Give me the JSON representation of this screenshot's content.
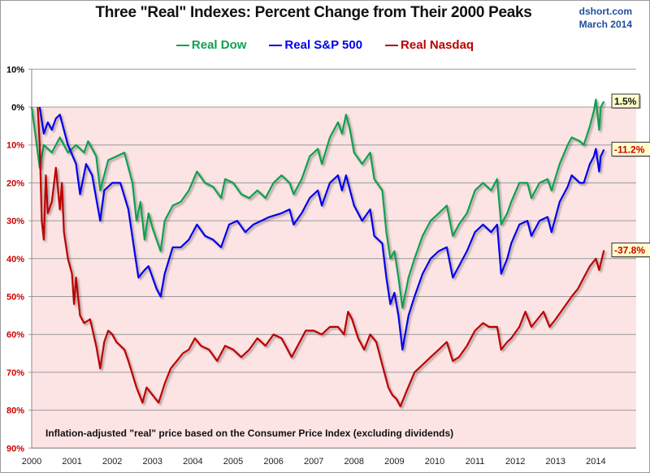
{
  "header": {
    "title": "Three \"Real\" Indexes: Percent Change from Their 2000 Peaks",
    "credit_site": "dshort.com",
    "credit_date": "March 2014"
  },
  "chart_data": {
    "type": "line",
    "title": "Three \"Real\" Indexes: Percent Change from Their 2000 Peaks",
    "xlabel": "",
    "ylabel": "",
    "annotation": "Inflation-adjusted \"real\" price based on the Consumer Price Index (excluding dividends)",
    "xlim": [
      2000,
      2015
    ],
    "ylim": [
      -90,
      10
    ],
    "grid": true,
    "legend_position": "top-center",
    "x_ticks": [
      "2000",
      "2001",
      "2002",
      "2003",
      "2004",
      "2005",
      "2006",
      "2007",
      "2008",
      "2009",
      "2010",
      "2011",
      "2012",
      "2013",
      "2014"
    ],
    "y_ticks": [
      {
        "value": 10,
        "label": "10%",
        "color": "#000000"
      },
      {
        "value": 0,
        "label": "0%",
        "color": "#000000"
      },
      {
        "value": -10,
        "label": "10%",
        "color": "#cc0000"
      },
      {
        "value": -20,
        "label": "20%",
        "color": "#cc0000"
      },
      {
        "value": -30,
        "label": "30%",
        "color": "#cc0000"
      },
      {
        "value": -40,
        "label": "40%",
        "color": "#cc0000"
      },
      {
        "value": -50,
        "label": "50%",
        "color": "#cc0000"
      },
      {
        "value": -60,
        "label": "60%",
        "color": "#cc0000"
      },
      {
        "value": -70,
        "label": "70%",
        "color": "#cc0000"
      },
      {
        "value": -80,
        "label": "80%",
        "color": "#cc0000"
      },
      {
        "value": -90,
        "label": "90%",
        "color": "#cc0000"
      }
    ],
    "series": [
      {
        "name": "Real Dow",
        "color": "#0fa050",
        "end_label": "1.5%",
        "end_label_color": "#111111",
        "end_value": 1.5,
        "points": [
          [
            2000.0,
            0
          ],
          [
            2000.1,
            -8
          ],
          [
            2000.2,
            -16
          ],
          [
            2000.3,
            -10
          ],
          [
            2000.5,
            -12
          ],
          [
            2000.7,
            -8
          ],
          [
            2000.9,
            -12
          ],
          [
            2001.1,
            -10
          ],
          [
            2001.3,
            -12
          ],
          [
            2001.4,
            -9
          ],
          [
            2001.6,
            -13
          ],
          [
            2001.7,
            -22
          ],
          [
            2001.9,
            -14
          ],
          [
            2002.1,
            -13
          ],
          [
            2002.3,
            -12
          ],
          [
            2002.5,
            -20
          ],
          [
            2002.6,
            -30
          ],
          [
            2002.7,
            -25
          ],
          [
            2002.8,
            -35
          ],
          [
            2002.9,
            -28
          ],
          [
            2003.0,
            -32
          ],
          [
            2003.2,
            -38
          ],
          [
            2003.3,
            -30
          ],
          [
            2003.5,
            -26
          ],
          [
            2003.7,
            -25
          ],
          [
            2003.9,
            -22
          ],
          [
            2004.1,
            -17
          ],
          [
            2004.3,
            -20
          ],
          [
            2004.5,
            -21
          ],
          [
            2004.7,
            -24
          ],
          [
            2004.8,
            -19
          ],
          [
            2005.0,
            -20
          ],
          [
            2005.2,
            -23
          ],
          [
            2005.4,
            -24
          ],
          [
            2005.6,
            -22
          ],
          [
            2005.8,
            -24
          ],
          [
            2006.0,
            -20
          ],
          [
            2006.2,
            -18
          ],
          [
            2006.4,
            -20
          ],
          [
            2006.5,
            -23
          ],
          [
            2006.7,
            -19
          ],
          [
            2006.9,
            -13
          ],
          [
            2007.1,
            -11
          ],
          [
            2007.2,
            -15
          ],
          [
            2007.4,
            -8
          ],
          [
            2007.6,
            -4
          ],
          [
            2007.7,
            -7
          ],
          [
            2007.8,
            -2
          ],
          [
            2007.9,
            -6
          ],
          [
            2008.0,
            -12
          ],
          [
            2008.2,
            -15
          ],
          [
            2008.4,
            -12
          ],
          [
            2008.5,
            -19
          ],
          [
            2008.7,
            -22
          ],
          [
            2008.8,
            -33
          ],
          [
            2008.9,
            -40
          ],
          [
            2009.0,
            -38
          ],
          [
            2009.1,
            -45
          ],
          [
            2009.2,
            -53
          ],
          [
            2009.35,
            -45
          ],
          [
            2009.5,
            -40
          ],
          [
            2009.7,
            -34
          ],
          [
            2009.9,
            -30
          ],
          [
            2010.1,
            -28
          ],
          [
            2010.3,
            -26
          ],
          [
            2010.45,
            -34
          ],
          [
            2010.6,
            -31
          ],
          [
            2010.8,
            -28
          ],
          [
            2011.0,
            -22
          ],
          [
            2011.2,
            -20
          ],
          [
            2011.4,
            -22
          ],
          [
            2011.55,
            -19
          ],
          [
            2011.65,
            -31
          ],
          [
            2011.8,
            -28
          ],
          [
            2011.9,
            -25
          ],
          [
            2012.1,
            -20
          ],
          [
            2012.3,
            -20
          ],
          [
            2012.4,
            -24
          ],
          [
            2012.6,
            -20
          ],
          [
            2012.8,
            -19
          ],
          [
            2012.9,
            -22
          ],
          [
            2013.1,
            -15
          ],
          [
            2013.3,
            -10
          ],
          [
            2013.4,
            -8
          ],
          [
            2013.6,
            -9
          ],
          [
            2013.7,
            -10
          ],
          [
            2013.85,
            -5
          ],
          [
            2013.95,
            -1
          ],
          [
            2014.0,
            2
          ],
          [
            2014.08,
            -6
          ],
          [
            2014.12,
            0
          ],
          [
            2014.2,
            1.5
          ]
        ]
      },
      {
        "name": "Real S&P 500",
        "color": "#0000ee",
        "end_label": "-11.2%",
        "end_label_color": "#cc0000",
        "end_value": -11.2,
        "points": [
          [
            2000.2,
            0
          ],
          [
            2000.3,
            -7
          ],
          [
            2000.4,
            -4
          ],
          [
            2000.5,
            -6
          ],
          [
            2000.6,
            -3
          ],
          [
            2000.7,
            -2
          ],
          [
            2000.9,
            -10
          ],
          [
            2001.1,
            -15
          ],
          [
            2001.2,
            -23
          ],
          [
            2001.35,
            -15
          ],
          [
            2001.5,
            -18
          ],
          [
            2001.7,
            -30
          ],
          [
            2001.8,
            -22
          ],
          [
            2002.0,
            -20
          ],
          [
            2002.2,
            -20
          ],
          [
            2002.4,
            -27
          ],
          [
            2002.55,
            -38
          ],
          [
            2002.65,
            -45
          ],
          [
            2002.8,
            -43
          ],
          [
            2002.9,
            -42
          ],
          [
            2003.1,
            -48
          ],
          [
            2003.2,
            -50
          ],
          [
            2003.3,
            -44
          ],
          [
            2003.5,
            -37
          ],
          [
            2003.7,
            -37
          ],
          [
            2003.9,
            -35
          ],
          [
            2004.1,
            -31
          ],
          [
            2004.3,
            -34
          ],
          [
            2004.5,
            -35
          ],
          [
            2004.7,
            -37
          ],
          [
            2004.9,
            -31
          ],
          [
            2005.1,
            -30
          ],
          [
            2005.3,
            -33
          ],
          [
            2005.5,
            -31
          ],
          [
            2005.7,
            -30
          ],
          [
            2005.9,
            -29
          ],
          [
            2006.2,
            -28
          ],
          [
            2006.4,
            -27
          ],
          [
            2006.5,
            -31
          ],
          [
            2006.7,
            -28
          ],
          [
            2006.9,
            -24
          ],
          [
            2007.1,
            -22
          ],
          [
            2007.2,
            -26
          ],
          [
            2007.4,
            -20
          ],
          [
            2007.6,
            -18
          ],
          [
            2007.7,
            -22
          ],
          [
            2007.8,
            -18
          ],
          [
            2008.0,
            -26
          ],
          [
            2008.2,
            -30
          ],
          [
            2008.4,
            -27
          ],
          [
            2008.5,
            -34
          ],
          [
            2008.7,
            -36
          ],
          [
            2008.8,
            -45
          ],
          [
            2008.9,
            -52
          ],
          [
            2009.0,
            -49
          ],
          [
            2009.1,
            -55
          ],
          [
            2009.2,
            -64
          ],
          [
            2009.35,
            -55
          ],
          [
            2009.5,
            -50
          ],
          [
            2009.7,
            -44
          ],
          [
            2009.9,
            -40
          ],
          [
            2010.1,
            -38
          ],
          [
            2010.3,
            -37
          ],
          [
            2010.45,
            -45
          ],
          [
            2010.6,
            -42
          ],
          [
            2010.8,
            -38
          ],
          [
            2011.0,
            -33
          ],
          [
            2011.2,
            -31
          ],
          [
            2011.4,
            -33
          ],
          [
            2011.55,
            -31
          ],
          [
            2011.65,
            -44
          ],
          [
            2011.8,
            -40
          ],
          [
            2011.9,
            -36
          ],
          [
            2012.1,
            -31
          ],
          [
            2012.3,
            -30
          ],
          [
            2012.4,
            -34
          ],
          [
            2012.6,
            -30
          ],
          [
            2012.8,
            -29
          ],
          [
            2012.9,
            -33
          ],
          [
            2013.1,
            -25
          ],
          [
            2013.3,
            -21
          ],
          [
            2013.4,
            -18
          ],
          [
            2013.6,
            -20
          ],
          [
            2013.7,
            -20
          ],
          [
            2013.85,
            -15
          ],
          [
            2013.95,
            -13
          ],
          [
            2014.0,
            -11
          ],
          [
            2014.08,
            -17
          ],
          [
            2014.12,
            -13
          ],
          [
            2014.2,
            -11.2
          ]
        ]
      },
      {
        "name": "Real Nasdaq",
        "color": "#bb0000",
        "end_label": "-37.8%",
        "end_label_color": "#cc0000",
        "end_value": -37.8,
        "points": [
          [
            2000.15,
            0
          ],
          [
            2000.2,
            -10
          ],
          [
            2000.25,
            -30
          ],
          [
            2000.3,
            -35
          ],
          [
            2000.35,
            -18
          ],
          [
            2000.4,
            -28
          ],
          [
            2000.5,
            -25
          ],
          [
            2000.6,
            -16
          ],
          [
            2000.7,
            -27
          ],
          [
            2000.75,
            -20
          ],
          [
            2000.8,
            -33
          ],
          [
            2000.9,
            -40
          ],
          [
            2001.0,
            -44
          ],
          [
            2001.05,
            -52
          ],
          [
            2001.1,
            -45
          ],
          [
            2001.2,
            -55
          ],
          [
            2001.3,
            -57
          ],
          [
            2001.45,
            -56
          ],
          [
            2001.6,
            -63
          ],
          [
            2001.7,
            -69
          ],
          [
            2001.8,
            -62
          ],
          [
            2001.9,
            -59
          ],
          [
            2002.0,
            -60
          ],
          [
            2002.1,
            -62
          ],
          [
            2002.3,
            -64
          ],
          [
            2002.4,
            -67
          ],
          [
            2002.6,
            -74
          ],
          [
            2002.75,
            -78
          ],
          [
            2002.85,
            -74
          ],
          [
            2003.0,
            -76
          ],
          [
            2003.15,
            -78
          ],
          [
            2003.3,
            -73
          ],
          [
            2003.45,
            -69
          ],
          [
            2003.6,
            -67
          ],
          [
            2003.75,
            -65
          ],
          [
            2003.9,
            -64
          ],
          [
            2004.05,
            -61
          ],
          [
            2004.2,
            -63
          ],
          [
            2004.4,
            -64
          ],
          [
            2004.6,
            -67
          ],
          [
            2004.8,
            -63
          ],
          [
            2005.0,
            -64
          ],
          [
            2005.2,
            -66
          ],
          [
            2005.4,
            -64
          ],
          [
            2005.6,
            -61
          ],
          [
            2005.8,
            -63
          ],
          [
            2006.0,
            -60
          ],
          [
            2006.2,
            -61
          ],
          [
            2006.45,
            -66
          ],
          [
            2006.6,
            -63
          ],
          [
            2006.8,
            -59
          ],
          [
            2007.0,
            -59
          ],
          [
            2007.2,
            -60
          ],
          [
            2007.4,
            -58
          ],
          [
            2007.6,
            -58
          ],
          [
            2007.75,
            -60
          ],
          [
            2007.85,
            -54
          ],
          [
            2007.95,
            -56
          ],
          [
            2008.1,
            -61
          ],
          [
            2008.25,
            -64
          ],
          [
            2008.4,
            -60
          ],
          [
            2008.55,
            -62
          ],
          [
            2008.7,
            -68
          ],
          [
            2008.85,
            -74
          ],
          [
            2008.95,
            -76
          ],
          [
            2009.05,
            -77
          ],
          [
            2009.15,
            -79
          ],
          [
            2009.3,
            -75
          ],
          [
            2009.5,
            -70
          ],
          [
            2009.7,
            -68
          ],
          [
            2009.9,
            -66
          ],
          [
            2010.1,
            -64
          ],
          [
            2010.3,
            -62
          ],
          [
            2010.45,
            -67
          ],
          [
            2010.6,
            -66
          ],
          [
            2010.8,
            -63
          ],
          [
            2011.0,
            -59
          ],
          [
            2011.2,
            -57
          ],
          [
            2011.35,
            -58
          ],
          [
            2011.55,
            -58
          ],
          [
            2011.65,
            -64
          ],
          [
            2011.8,
            -62
          ],
          [
            2011.9,
            -61
          ],
          [
            2012.1,
            -58
          ],
          [
            2012.25,
            -54
          ],
          [
            2012.4,
            -58
          ],
          [
            2012.55,
            -56
          ],
          [
            2012.7,
            -54
          ],
          [
            2012.85,
            -58
          ],
          [
            2013.0,
            -56
          ],
          [
            2013.2,
            -53
          ],
          [
            2013.4,
            -50
          ],
          [
            2013.55,
            -48
          ],
          [
            2013.7,
            -45
          ],
          [
            2013.85,
            -42
          ],
          [
            2014.0,
            -40
          ],
          [
            2014.08,
            -43
          ],
          [
            2014.2,
            -37.8
          ]
        ]
      }
    ]
  },
  "colors": {
    "negative_region": "#fde4e4",
    "gridline": "#9a9a9a",
    "label_box_bg": "#ffffcc"
  }
}
